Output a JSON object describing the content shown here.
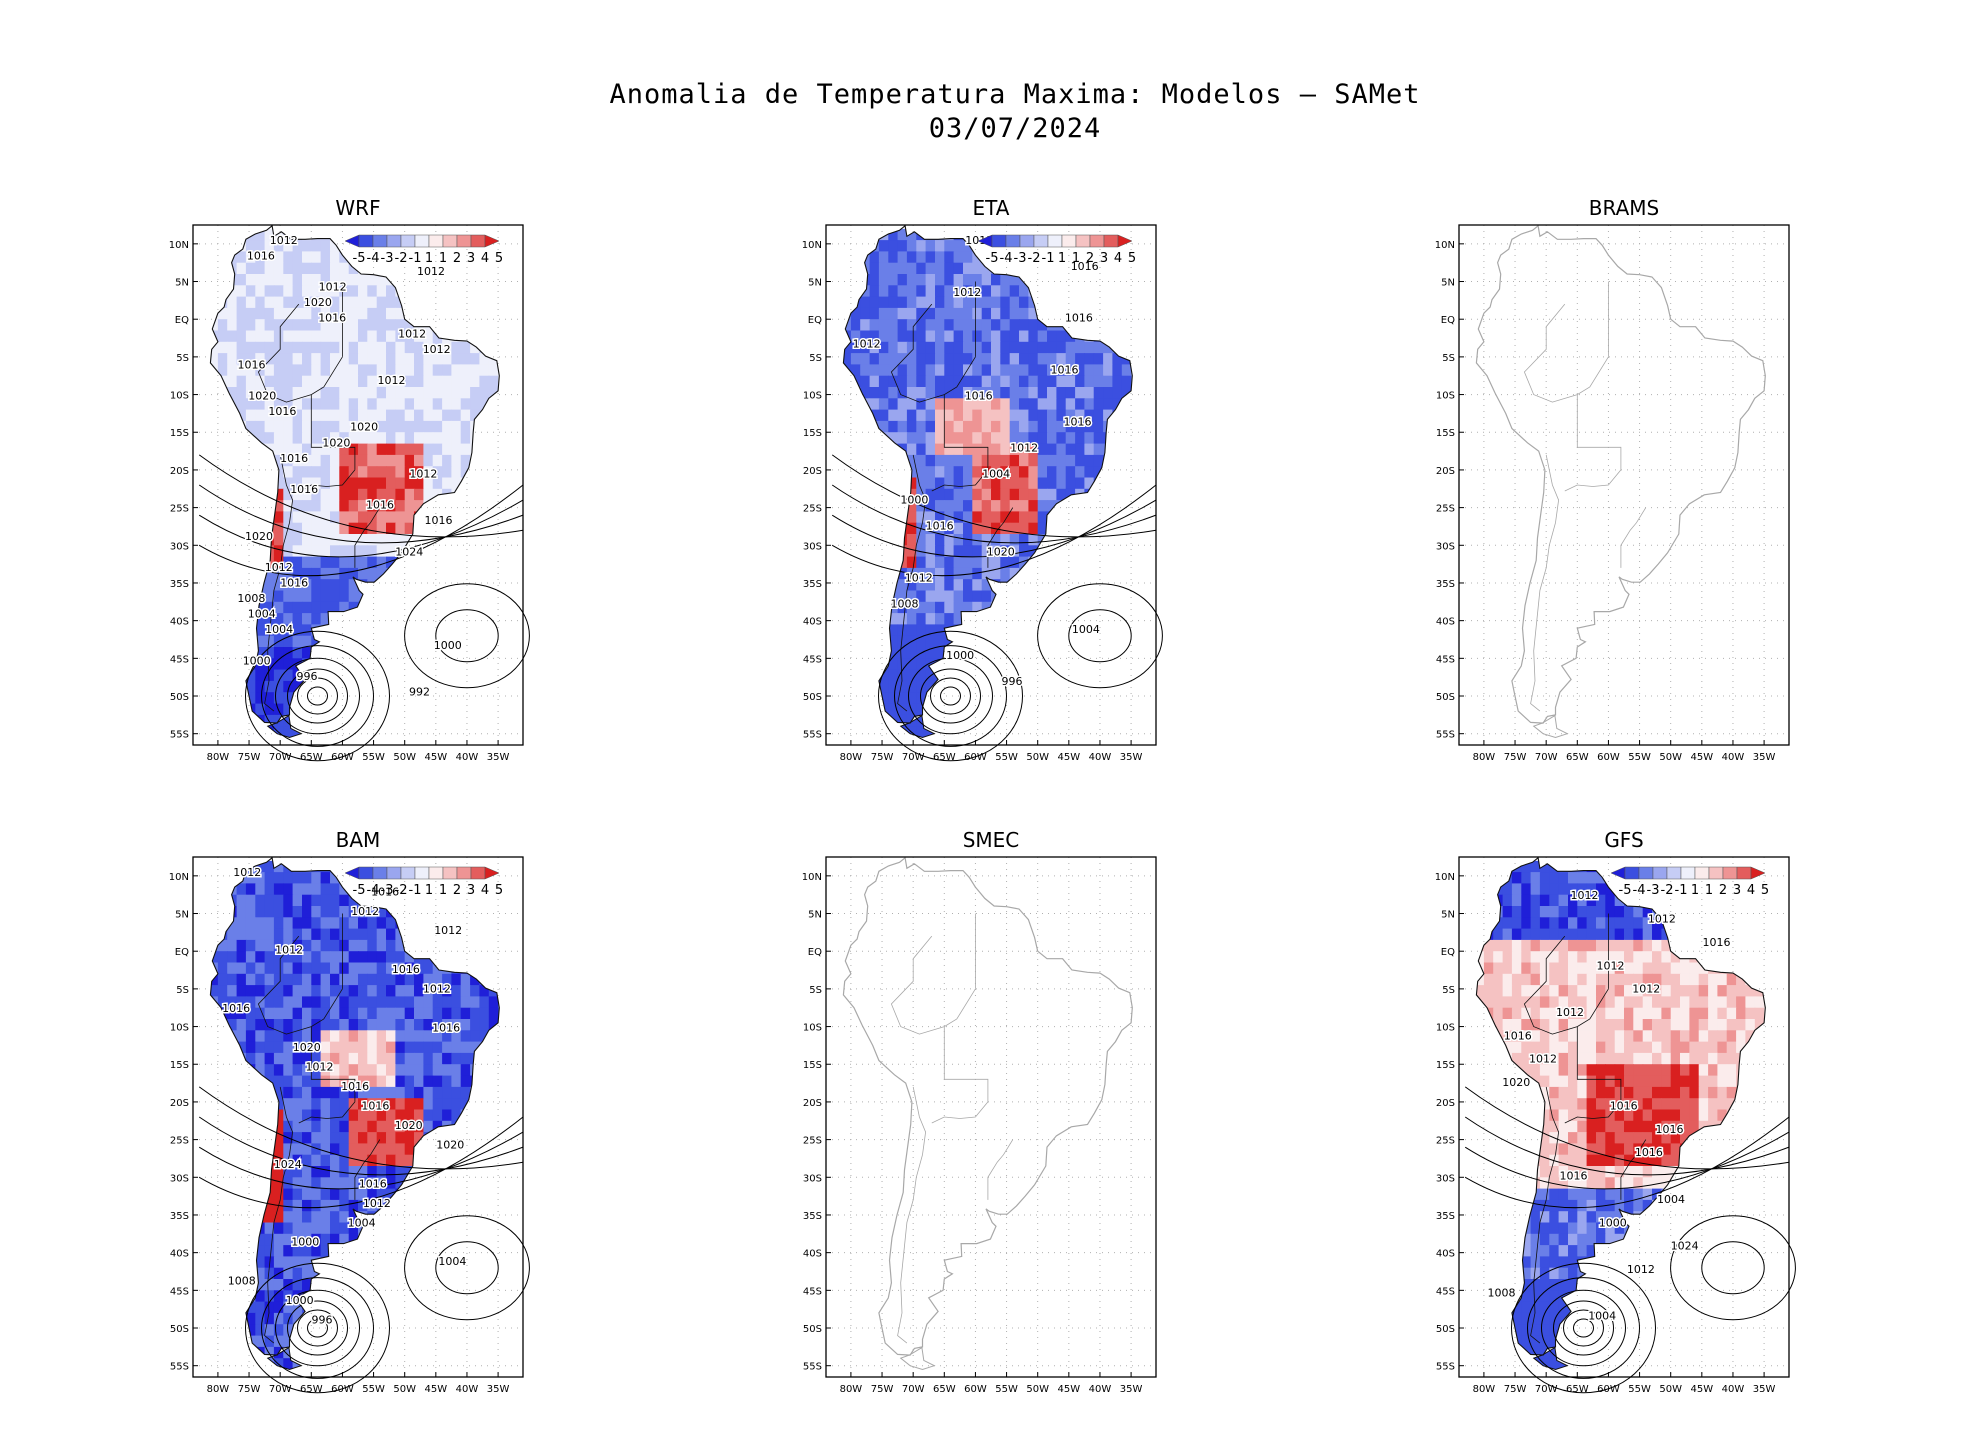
{
  "figure": {
    "title_line1": "Anomalia de Temperatura Maxima: Modelos – SAMet",
    "title_line2": "03/07/2024"
  },
  "axes": {
    "lat_labels": [
      "10N",
      "5N",
      "EQ",
      "5S",
      "10S",
      "15S",
      "20S",
      "25S",
      "30S",
      "35S",
      "40S",
      "45S",
      "50S",
      "55S"
    ],
    "lon_labels": [
      "80W",
      "75W",
      "70W",
      "65W",
      "60W",
      "55W",
      "50W",
      "45W",
      "40W",
      "35W"
    ]
  },
  "colorbar": {
    "labels": [
      "-5",
      "-4",
      "-3",
      "-2",
      "-1",
      "1",
      "1",
      "2",
      "3",
      "4",
      "5"
    ],
    "colors": [
      "#1f1fd8",
      "#3b4fe0",
      "#6a7fe8",
      "#9aa6ef",
      "#c6cdf5",
      "#eef0fb",
      "#fbecec",
      "#f5c2c2",
      "#ee9494",
      "#e35d5d",
      "#d92020"
    ]
  },
  "panels": [
    {
      "name": "WRF",
      "has_data": true,
      "tint": "mixed",
      "contours": [
        "1012",
        "1016",
        "1012",
        "1012",
        "1020",
        "1016",
        "1012",
        "1012",
        "1016",
        "1012",
        "1020",
        "1016",
        "1020",
        "1020",
        "1016",
        "1012",
        "1016",
        "1016",
        "1016",
        "1020",
        "1024",
        "1012",
        "1016",
        "1008",
        "1004",
        "1004",
        "1000",
        "1000",
        "996",
        "992"
      ]
    },
    {
      "name": "ETA",
      "has_data": true,
      "tint": "blue-red",
      "contours": [
        "1012",
        "1016",
        "1012",
        "1016",
        "1012",
        "1016",
        "1016",
        "1016",
        "1012",
        "1004",
        "1000",
        "1016",
        "1020",
        "1012",
        "1008",
        "1004",
        "1000",
        "996"
      ]
    },
    {
      "name": "BRAMS",
      "has_data": false,
      "tint": "none",
      "contours": []
    },
    {
      "name": "BAM",
      "has_data": true,
      "tint": "blue",
      "contours": [
        "1012",
        "1016",
        "1012",
        "1012",
        "1012",
        "1016",
        "1012",
        "1016",
        "1016",
        "1020",
        "1012",
        "1016",
        "1016",
        "1020",
        "1020",
        "1024",
        "1016",
        "1012",
        "1004",
        "1000",
        "1004",
        "1008",
        "1000",
        "996"
      ]
    },
    {
      "name": "SMEC",
      "has_data": false,
      "tint": "none",
      "contours": []
    },
    {
      "name": "GFS",
      "has_data": true,
      "tint": "red",
      "contours": [
        "1012",
        "1012",
        "1012",
        "1016",
        "1012",
        "1012",
        "1012",
        "1016",
        "1012",
        "1020",
        "1016",
        "1016",
        "1016",
        "1016",
        "1004",
        "1000",
        "1024",
        "1012",
        "1008",
        "1004"
      ]
    }
  ]
}
